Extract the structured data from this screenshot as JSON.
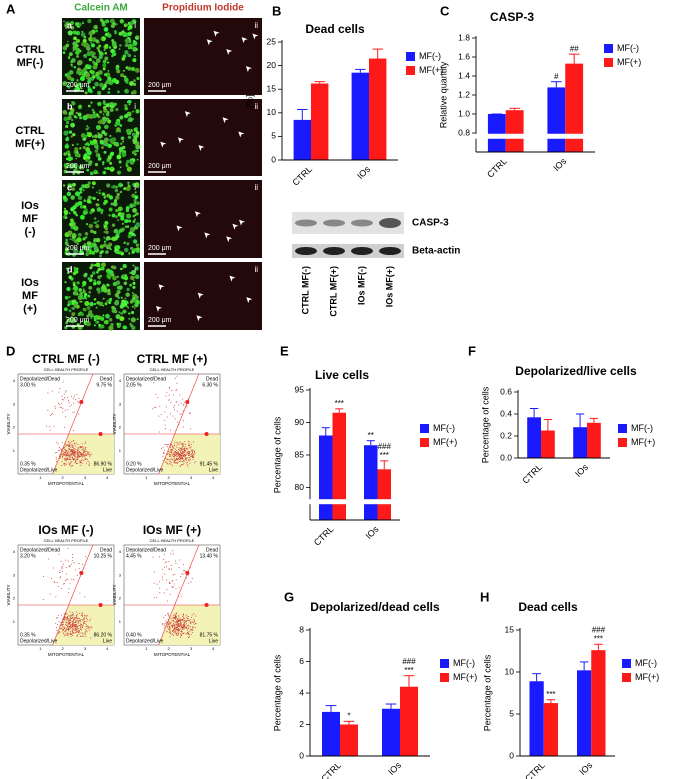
{
  "panel_letters": [
    "A",
    "B",
    "C",
    "D",
    "E",
    "F",
    "G",
    "H"
  ],
  "micrographs": {
    "columns": [
      "Calcein AM",
      "Propidium Iodide"
    ],
    "rows": [
      {
        "label": [
          "CTRL",
          "MF(-)"
        ],
        "letter": "a"
      },
      {
        "label": [
          "CTRL",
          "MF(+)"
        ],
        "letter": "b"
      },
      {
        "label": [
          "IOs",
          "MF",
          "(-)"
        ],
        "letter": "c"
      },
      {
        "label": [
          "IOs",
          "MF",
          "(+)"
        ],
        "letter": "d"
      }
    ],
    "column_marks": [
      "i",
      "ii"
    ],
    "scale": "200 μm"
  },
  "blot": {
    "bands": [
      "CASP-3",
      "Beta-actin"
    ],
    "lanes": [
      "CTRL MF(-)",
      "CTRL MF(+)",
      "IOs MF(-)",
      "IOs MF(+)"
    ]
  },
  "flow": {
    "header": "CELL HEALTH PROFILE",
    "xlabel": "MITOPOTENTIAL",
    "ylabel": "VIABILITY",
    "ticks": [
      1,
      2,
      3,
      4
    ],
    "quadrants": [
      "Depolarized/Dead",
      "Dead",
      "Depolarized/Live",
      "Live"
    ],
    "plots": [
      {
        "title": "CTRL MF (-)",
        "percents": [
          "3.00 %",
          "9.75 %",
          "0.35 %",
          "86.90 %"
        ]
      },
      {
        "title": "CTRL MF (+)",
        "percents": [
          "2.05 %",
          "6.30 %",
          "0.20 %",
          "91.45 %"
        ]
      },
      {
        "title": "IOs MF (-)",
        "percents": [
          "3.20 %",
          "10.25 %",
          "0.35 %",
          "86.20 %"
        ]
      },
      {
        "title": "IOs MF (+)",
        "percents": [
          "4.45 %",
          "13.40 %",
          "0.40 %",
          "81.75 %"
        ]
      }
    ]
  },
  "chart_data": [
    {
      "type": "bar",
      "title": "Dead cells",
      "ylabel": "[%]",
      "categories": [
        "CTRL",
        "IOs"
      ],
      "series": [
        {
          "name": "MF(-)",
          "color": "#1a1aff",
          "values": [
            8.5,
            18.5
          ],
          "errors": [
            2.2,
            0.7
          ],
          "annotations": [
            [],
            []
          ]
        },
        {
          "name": "MF(+)",
          "color": "#ff1a1a",
          "values": [
            16.2,
            21.5
          ],
          "errors": [
            0.4,
            2.0
          ],
          "annotations": [
            [],
            []
          ]
        }
      ],
      "ylim": [
        0,
        25
      ],
      "yticks": [
        0,
        5,
        10,
        15,
        20,
        25
      ],
      "axis_break": false
    },
    {
      "type": "bar",
      "title": "CASP-3",
      "ylabel": "Relative quantity",
      "categories": [
        "CTRL",
        "IOs"
      ],
      "series": [
        {
          "name": "MF(-)",
          "color": "#1a1aff",
          "values": [
            1.0,
            1.28
          ],
          "errors": [
            0,
            0.06
          ],
          "annotations": [
            [],
            [
              "#"
            ]
          ]
        },
        {
          "name": "MF(+)",
          "color": "#ff1a1a",
          "values": [
            1.04,
            1.53
          ],
          "errors": [
            0.02,
            0.1
          ],
          "annotations": [
            [],
            [
              "##"
            ]
          ]
        }
      ],
      "ylim": [
        0.6,
        1.8
      ],
      "yticks": [
        0.8,
        {
          "value": 1,
          "label": "1.0"
        },
        1.2,
        1.4,
        1.6,
        1.8
      ],
      "axis_break": true
    },
    {
      "type": "bar",
      "title": "Live cells",
      "ylabel": "Percentage of cells",
      "categories": [
        "CTRL",
        "IOs"
      ],
      "series": [
        {
          "name": "MF(-)",
          "color": "#1a1aff",
          "values": [
            88,
            86.5
          ],
          "errors": [
            1.2,
            0.7
          ],
          "annotations": [
            [],
            [
              "**"
            ]
          ]
        },
        {
          "name": "MF(+)",
          "color": "#ff1a1a",
          "values": [
            91.5,
            82.8
          ],
          "errors": [
            0.6,
            1.3
          ],
          "annotations": [
            [
              "***"
            ],
            [
              "###",
              "***"
            ]
          ]
        }
      ],
      "ylim": [
        75,
        95
      ],
      "yticks": [
        80,
        85,
        90,
        95
      ],
      "axis_break": true
    },
    {
      "type": "bar",
      "title": "Depolarized/live cells",
      "ylabel": "Percentage of cells",
      "categories": [
        "CTRL",
        "IOs"
      ],
      "series": [
        {
          "name": "MF(-)",
          "color": "#1a1aff",
          "values": [
            0.37,
            0.28
          ],
          "errors": [
            0.08,
            0.12
          ],
          "annotations": [
            [],
            []
          ]
        },
        {
          "name": "MF(+)",
          "color": "#ff1a1a",
          "values": [
            0.25,
            0.32
          ],
          "errors": [
            0.1,
            0.04
          ],
          "annotations": [
            [],
            []
          ]
        }
      ],
      "ylim": [
        0,
        0.6
      ],
      "yticks": [
        {
          "value": 0,
          "label": "0.0"
        },
        0.2,
        0.4,
        0.6
      ],
      "axis_break": false
    },
    {
      "type": "bar",
      "title": "Depolarized/dead cells",
      "ylabel": "Percentage of cells",
      "categories": [
        "CTRL",
        "IOs"
      ],
      "series": [
        {
          "name": "MF(-)",
          "color": "#1a1aff",
          "values": [
            2.8,
            3.0
          ],
          "errors": [
            0.4,
            0.3
          ],
          "annotations": [
            [],
            []
          ]
        },
        {
          "name": "MF(+)",
          "color": "#ff1a1a",
          "values": [
            2.0,
            4.4
          ],
          "errors": [
            0.2,
            0.7
          ],
          "annotations": [
            [
              "*"
            ],
            [
              "###",
              "***"
            ]
          ]
        }
      ],
      "ylim": [
        0,
        8
      ],
      "yticks": [
        0,
        2,
        4,
        6,
        8
      ],
      "axis_break": false
    },
    {
      "type": "bar",
      "title": "Dead cells",
      "ylabel": "Percentage of cells",
      "categories": [
        "CTRL",
        "IOs"
      ],
      "series": [
        {
          "name": "MF(-)",
          "color": "#1a1aff",
          "values": [
            8.9,
            10.2
          ],
          "errors": [
            0.9,
            1.0
          ],
          "annotations": [
            [],
            []
          ]
        },
        {
          "name": "MF(+)",
          "color": "#ff1a1a",
          "values": [
            6.3,
            12.6
          ],
          "errors": [
            0.4,
            0.7
          ],
          "annotations": [
            [
              "***"
            ],
            [
              "###",
              "***"
            ]
          ]
        }
      ],
      "ylim": [
        0,
        15
      ],
      "yticks": [
        0,
        5,
        10,
        15
      ],
      "axis_break": false
    }
  ]
}
